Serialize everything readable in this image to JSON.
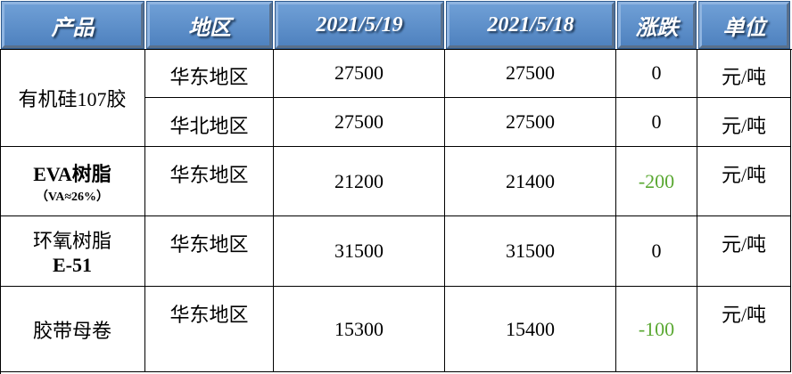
{
  "table": {
    "header": [
      "产品",
      "地区",
      "2021/5/19",
      "2021/5/18",
      "涨跌",
      "单位"
    ],
    "groups": [
      {
        "product": [
          "有机硅107胶"
        ],
        "rows": [
          [
            "华东地区",
            "27500",
            "27500",
            "0",
            "元/吨"
          ],
          [
            "华北地区",
            "27500",
            "27500",
            "0",
            "元/吨"
          ]
        ]
      },
      {
        "product": [
          "EVA树脂",
          "（VA≈26%）"
        ],
        "rows": [
          [
            "华东地区",
            "21200",
            "21400",
            "-200",
            "元/吨"
          ]
        ]
      },
      {
        "product": [
          "环氧树脂",
          "E-51"
        ],
        "rows": [
          [
            "华东地区",
            "31500",
            "31500",
            "0",
            "元/吨"
          ]
        ]
      },
      {
        "product": [
          "胶带母卷"
        ],
        "rows": [
          [
            "华东地区",
            "15300",
            "15400",
            "-100",
            "元/吨"
          ]
        ]
      }
    ]
  }
}
